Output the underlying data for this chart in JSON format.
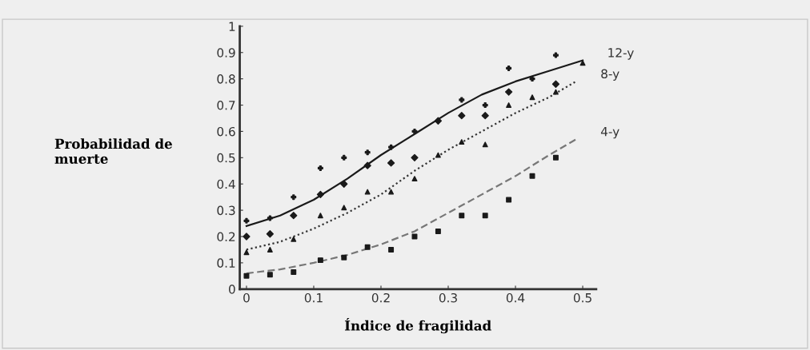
{
  "chart_data": {
    "type": "scatter",
    "xlabel": "Índice de fragilidad",
    "ylabel": "Probabilidad de\nmuerte",
    "xlim": [
      -0.01,
      0.52
    ],
    "ylim": [
      0,
      1
    ],
    "xticks": [
      0,
      0.1,
      0.2,
      0.3,
      0.4,
      0.5
    ],
    "yticks": [
      0,
      0.1,
      0.2,
      0.3,
      0.4,
      0.5,
      0.6,
      0.7,
      0.8,
      0.9,
      1
    ],
    "grid": false,
    "legend": false,
    "series": [
      {
        "marker": "cross",
        "color": "#1a1a1a",
        "x": [
          0,
          0.035,
          0.07,
          0.11,
          0.145,
          0.18,
          0.215,
          0.25,
          0.285,
          0.32,
          0.355,
          0.39,
          0.425,
          0.46
        ],
        "values": [
          0.26,
          0.27,
          0.35,
          0.46,
          0.5,
          0.52,
          0.54,
          0.6,
          null,
          0.72,
          0.7,
          0.84,
          0.8,
          0.89
        ]
      },
      {
        "marker": "diamond",
        "color": "#1a1a1a",
        "x": [
          0,
          0.035,
          0.07,
          0.11,
          0.145,
          0.18,
          0.215,
          0.25,
          0.285,
          0.32,
          0.355,
          0.39,
          0.425,
          0.46
        ],
        "values": [
          0.2,
          0.21,
          0.28,
          0.36,
          0.4,
          0.47,
          0.48,
          0.5,
          0.64,
          0.66,
          0.66,
          0.75,
          null,
          0.78
        ]
      },
      {
        "marker": "triangle",
        "color": "#1a1a1a",
        "x": [
          0,
          0.035,
          0.07,
          0.11,
          0.145,
          0.18,
          0.215,
          0.25,
          0.285,
          0.32,
          0.355,
          0.39,
          0.425,
          0.46,
          0.5
        ],
        "values": [
          0.14,
          0.15,
          0.19,
          0.28,
          0.31,
          0.37,
          0.37,
          0.42,
          0.51,
          0.56,
          0.55,
          0.7,
          0.73,
          0.75,
          0.86
        ]
      },
      {
        "marker": "square",
        "color": "#1a1a1a",
        "x": [
          0,
          0.035,
          0.07,
          0.11,
          0.145,
          0.18,
          0.215,
          0.25,
          0.285,
          0.32,
          0.355,
          0.39,
          0.425,
          0.46
        ],
        "values": [
          0.05,
          0.055,
          0.065,
          0.11,
          0.12,
          0.16,
          0.15,
          0.2,
          0.22,
          0.28,
          0.28,
          0.34,
          0.43,
          0.5
        ]
      },
      {
        "type": "line",
        "name": "12-y",
        "line_style": "solid",
        "color": "#1a1a1a",
        "x": [
          0,
          0.05,
          0.1,
          0.15,
          0.2,
          0.25,
          0.3,
          0.35,
          0.4,
          0.45,
          0.5
        ],
        "values": [
          0.24,
          0.28,
          0.34,
          0.42,
          0.51,
          0.59,
          0.67,
          0.74,
          0.79,
          0.83,
          0.87
        ]
      },
      {
        "type": "line",
        "name": "8-y",
        "line_style": "dotted",
        "color": "#333333",
        "x": [
          0,
          0.05,
          0.1,
          0.15,
          0.2,
          0.25,
          0.3,
          0.35,
          0.4,
          0.45,
          0.49
        ],
        "values": [
          0.15,
          0.18,
          0.23,
          0.29,
          0.36,
          0.45,
          0.53,
          0.6,
          0.67,
          0.73,
          0.79
        ]
      },
      {
        "type": "line",
        "name": "4-y",
        "line_style": "dashed",
        "color": "#777777",
        "x": [
          0,
          0.05,
          0.1,
          0.15,
          0.2,
          0.25,
          0.3,
          0.35,
          0.4,
          0.45,
          0.49
        ],
        "values": [
          0.06,
          0.075,
          0.1,
          0.13,
          0.17,
          0.22,
          0.29,
          0.36,
          0.43,
          0.51,
          0.57
        ]
      }
    ]
  }
}
